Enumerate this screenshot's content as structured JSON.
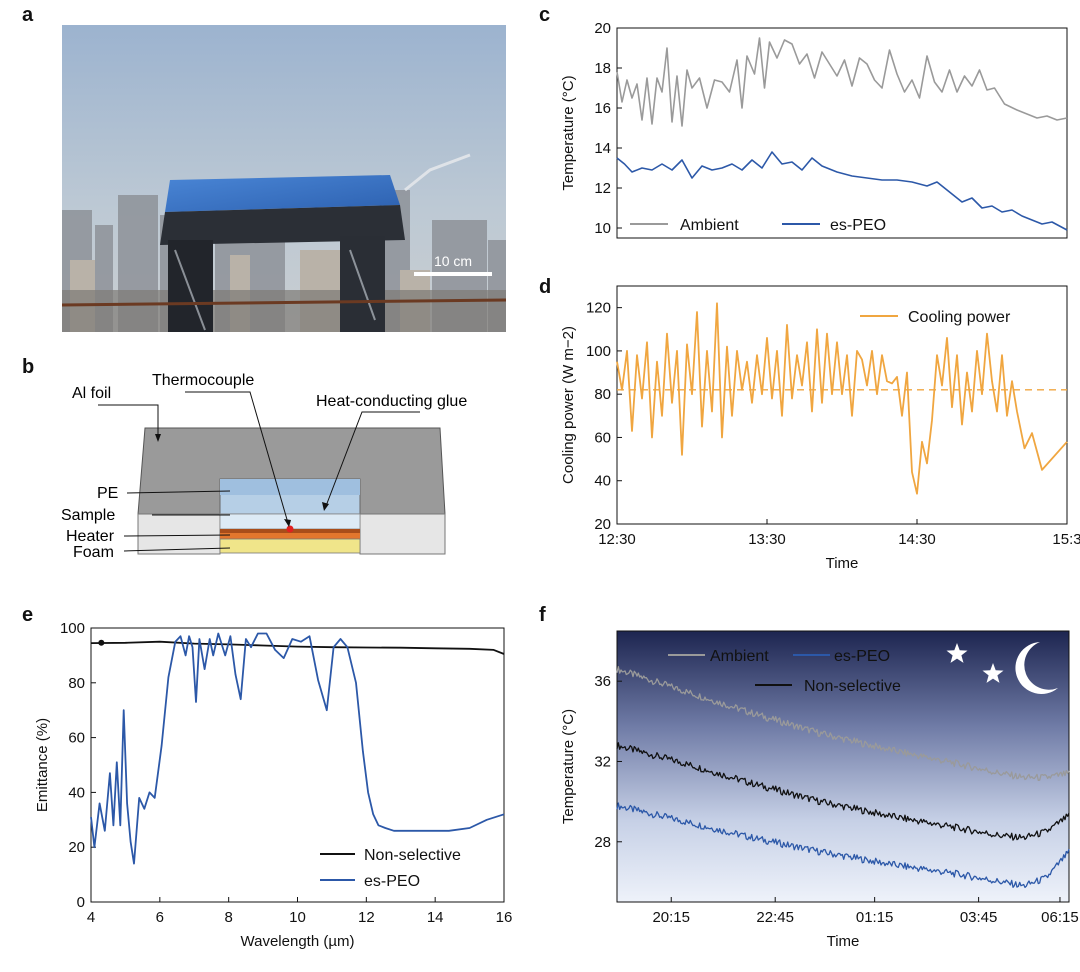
{
  "panels": {
    "a": {
      "letter": "a",
      "scale_label": "10 cm"
    },
    "b": {
      "letter": "b",
      "labels": {
        "al_foil": "Al foil",
        "thermocouple": "Thermocouple",
        "glue": "Heat-conducting glue",
        "pe": "PE",
        "sample": "Sample",
        "heater": "Heater",
        "foam": "Foam"
      }
    },
    "c": {
      "letter": "c"
    },
    "d": {
      "letter": "d"
    },
    "e": {
      "letter": "e"
    },
    "f": {
      "letter": "f"
    }
  },
  "colors": {
    "ambient": "#9a9a9a",
    "espeo": "#2c58a8",
    "nonselective": "#111111",
    "cooling": "#f0a640"
  },
  "chart_data": [
    {
      "id": "c",
      "type": "line",
      "xlabel": "",
      "ylabel": "Temperature (°C)",
      "xlim": [
        0,
        180
      ],
      "ylim": [
        9.5,
        20
      ],
      "yticks": [
        10,
        12,
        14,
        16,
        18,
        20
      ],
      "legend": "bottom-left",
      "series": [
        {
          "name": "Ambient",
          "values": [
            17.8,
            16.3,
            17.4,
            16.5,
            17.2,
            15.4,
            17.5,
            15.2,
            17.5,
            16.8,
            19.0,
            15.3,
            17.6,
            15.1,
            17.9,
            17.0,
            17.5,
            16.0,
            17.4,
            17.3,
            16.8,
            18.4,
            16.0,
            18.6,
            17.7,
            19.5,
            17.0,
            19.3,
            18.5,
            19.4,
            19.2,
            18.2,
            18.7,
            17.5,
            18.8,
            18.2,
            17.6,
            18.4,
            17.1,
            18.5,
            18.2,
            17.4,
            17.0,
            18.9,
            17.7,
            16.8,
            17.4,
            16.5,
            18.6,
            17.3,
            16.8,
            17.9,
            16.8,
            17.6,
            17.1,
            17.9,
            16.9,
            17.0,
            16.2,
            15.9,
            15.7,
            15.5,
            15.6,
            15.4,
            15.5
          ],
          "x": [
            0,
            2,
            4,
            6,
            8,
            10,
            12,
            14,
            16,
            18,
            20,
            22,
            24,
            26,
            28,
            30,
            33,
            36,
            39,
            42,
            45,
            48,
            50,
            52,
            55,
            57,
            59,
            61,
            64,
            67,
            70,
            73,
            76,
            79,
            82,
            85,
            88,
            91,
            94,
            97,
            100,
            103,
            106,
            109,
            112,
            115,
            118,
            121,
            124,
            127,
            130,
            133,
            136,
            139,
            142,
            145,
            148,
            151,
            155,
            160,
            164,
            168,
            172,
            176,
            180
          ]
        },
        {
          "name": "es-PEO",
          "values": [
            13.5,
            13.2,
            12.8,
            13.0,
            12.9,
            13.2,
            12.9,
            13.4,
            12.5,
            13.1,
            12.9,
            13.0,
            13.2,
            12.9,
            13.4,
            13.0,
            13.8,
            13.2,
            13.3,
            12.9,
            13.5,
            13.1,
            12.8,
            12.6,
            12.5,
            12.4,
            12.4,
            12.3,
            12.1,
            12.3,
            11.7,
            11.3,
            11.5,
            11.0,
            11.1,
            10.8,
            10.9,
            10.6,
            10.4,
            10.2,
            10.3,
            9.9
          ],
          "x": [
            0,
            3,
            6,
            10,
            14,
            18,
            22,
            26,
            30,
            34,
            38,
            42,
            46,
            50,
            54,
            58,
            62,
            66,
            70,
            74,
            78,
            82,
            88,
            94,
            100,
            106,
            112,
            118,
            124,
            128,
            134,
            138,
            142,
            146,
            150,
            154,
            158,
            162,
            166,
            170,
            174,
            180
          ]
        }
      ]
    },
    {
      "id": "d",
      "type": "line",
      "xlabel": "Time",
      "ylabel": "Cooling power (W m−2)",
      "xlim": [
        0,
        180
      ],
      "ylim": [
        20,
        130
      ],
      "yticks": [
        20,
        40,
        60,
        80,
        100,
        120
      ],
      "xticks": [
        {
          "v": 0,
          "label": "12:30"
        },
        {
          "v": 60,
          "label": "13:30"
        },
        {
          "v": 120,
          "label": "14:30"
        },
        {
          "v": 180,
          "label": "15:3"
        }
      ],
      "reference_line": 82,
      "legend": "top-right",
      "series": [
        {
          "name": "Cooling power",
          "values": [
            95,
            82,
            100,
            63,
            98,
            78,
            104,
            60,
            95,
            70,
            108,
            76,
            100,
            52,
            103,
            80,
            118,
            65,
            100,
            72,
            122,
            60,
            102,
            70,
            100,
            82,
            95,
            76,
            98,
            80,
            106,
            78,
            100,
            70,
            112,
            78,
            98,
            84,
            104,
            72,
            110,
            76,
            108,
            80,
            104,
            80,
            98,
            70,
            100,
            96,
            84,
            100,
            80,
            98,
            86,
            85,
            88,
            70,
            90,
            44,
            34,
            58,
            48,
            68,
            98,
            84,
            106,
            74,
            98,
            66,
            90,
            72,
            100,
            80,
            108,
            86,
            72,
            98,
            70,
            86,
            72,
            55,
            62,
            45,
            58
          ],
          "x": [
            0,
            2,
            4,
            6,
            8,
            10,
            12,
            14,
            16,
            18,
            20,
            22,
            24,
            26,
            28,
            30,
            32,
            34,
            36,
            38,
            40,
            42,
            44,
            46,
            48,
            50,
            52,
            54,
            56,
            58,
            60,
            62,
            64,
            66,
            68,
            70,
            72,
            74,
            76,
            78,
            80,
            82,
            84,
            86,
            88,
            90,
            92,
            94,
            96,
            98,
            100,
            102,
            104,
            106,
            108,
            110,
            112,
            114,
            116,
            118,
            120,
            122,
            124,
            126,
            128,
            130,
            132,
            134,
            136,
            138,
            140,
            142,
            144,
            146,
            148,
            150,
            152,
            154,
            156,
            158,
            160,
            163,
            166,
            170,
            180
          ]
        }
      ]
    },
    {
      "id": "e",
      "type": "line",
      "xlabel": "Wavelength (µm)",
      "ylabel": "Emittance (%)",
      "xlim": [
        4,
        16
      ],
      "ylim": [
        0,
        100
      ],
      "xticks": [
        4,
        6,
        8,
        10,
        12,
        14,
        16
      ],
      "yticks": [
        0,
        20,
        40,
        60,
        80,
        100
      ],
      "legend": "bottom-right",
      "series": [
        {
          "name": "Non-selective",
          "x": [
            4,
            5,
            6,
            7,
            8,
            9,
            10,
            11,
            12,
            13,
            14,
            15,
            15.7,
            16
          ],
          "values": [
            94.5,
            94.6,
            95.0,
            94.3,
            94.0,
            93.6,
            93.2,
            93.0,
            92.9,
            92.8,
            92.6,
            92.4,
            92.0,
            90.5
          ]
        },
        {
          "name": "es-PEO",
          "x": [
            4.0,
            4.1,
            4.25,
            4.4,
            4.55,
            4.65,
            4.75,
            4.85,
            4.95,
            5.05,
            5.15,
            5.25,
            5.4,
            5.55,
            5.7,
            5.85,
            6.05,
            6.25,
            6.45,
            6.6,
            6.75,
            6.85,
            6.95,
            7.05,
            7.15,
            7.3,
            7.45,
            7.55,
            7.7,
            7.9,
            8.05,
            8.2,
            8.35,
            8.5,
            8.65,
            8.85,
            9.1,
            9.35,
            9.6,
            9.85,
            10.1,
            10.35,
            10.6,
            10.85,
            11.05,
            11.25,
            11.45,
            11.7,
            11.9,
            12.05,
            12.2,
            12.35,
            12.55,
            12.8,
            13.2,
            13.8,
            14.4,
            15.0,
            15.5,
            16.0
          ],
          "values": [
            31,
            20,
            36,
            26,
            47,
            28,
            51,
            28,
            70,
            36,
            22,
            14,
            38,
            34,
            40,
            38,
            57,
            82,
            95,
            97,
            90,
            97,
            93,
            73,
            96,
            85,
            96,
            90,
            98,
            90,
            97,
            83,
            74,
            96,
            93,
            98,
            98,
            92,
            89,
            96,
            95,
            97,
            81,
            70,
            93,
            96,
            93,
            80,
            55,
            40,
            32,
            28,
            27,
            26,
            26,
            26,
            26,
            27,
            30,
            32
          ]
        }
      ]
    },
    {
      "id": "f",
      "type": "line",
      "xlabel": "Time",
      "ylabel": "Temperature (°C)",
      "xlim": [
        0,
        100
      ],
      "ylim": [
        25,
        38.5
      ],
      "xticks": [
        {
          "v": 12,
          "label": "20:15"
        },
        {
          "v": 35,
          "label": "22:45"
        },
        {
          "v": 57,
          "label": "01:15"
        },
        {
          "v": 80,
          "label": "03:45"
        },
        {
          "v": 98,
          "label": "06:15"
        }
      ],
      "yticks": [
        28,
        32,
        36
      ],
      "legend": "top",
      "series": [
        {
          "name": "Ambient",
          "x": [
            0,
            15,
            30,
            45,
            60,
            75,
            85,
            90,
            95,
            100
          ],
          "values": [
            36.6,
            35.5,
            34.4,
            33.4,
            32.6,
            31.9,
            31.4,
            31.2,
            31.2,
            31.4
          ]
        },
        {
          "name": "es-PEO",
          "x": [
            0,
            15,
            30,
            45,
            60,
            75,
            85,
            90,
            95,
            100
          ],
          "values": [
            29.8,
            29.0,
            28.2,
            27.5,
            26.9,
            26.4,
            26.0,
            25.8,
            26.2,
            27.5
          ]
        },
        {
          "name": "Non-selective",
          "x": [
            0,
            15,
            30,
            45,
            60,
            75,
            85,
            90,
            95,
            100
          ],
          "values": [
            32.8,
            31.9,
            30.9,
            30.0,
            29.3,
            28.7,
            28.3,
            28.2,
            28.5,
            29.3
          ]
        }
      ]
    }
  ]
}
